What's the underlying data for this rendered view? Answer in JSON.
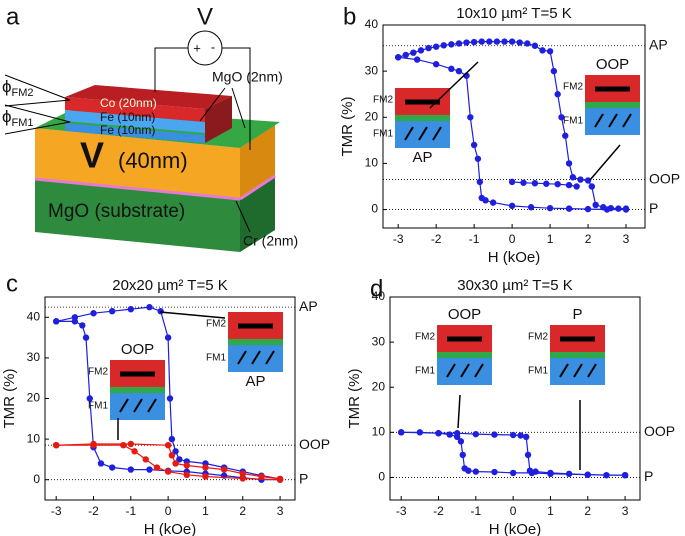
{
  "diagram": {
    "label": "a",
    "voltmeter": {
      "symbol": "V",
      "plus": "+",
      "minus": "-"
    },
    "layers": {
      "co": "Co (20nm)",
      "fe2": "Fe (10nm)",
      "fe1": "Fe (10nm)",
      "v_symbol": "V",
      "v_thickness": "(40nm)",
      "substrate": "MgO (substrate)"
    },
    "callouts": {
      "mgo": "MgO (2nm)",
      "cr": "Cr (2nm)"
    },
    "angles": [
      {
        "symbol": "ϕ",
        "sub": "FM2"
      },
      {
        "symbol": "ϕ",
        "sub": "FM1"
      }
    ]
  },
  "chart_data": [
    {
      "type": "line",
      "label": "b",
      "title": "10x10 µm²  T=5 K",
      "x_label": "H (kOe)",
      "y_label": "TMR (%)",
      "xlim": [
        -3.4,
        3.5
      ],
      "ylim": [
        -4,
        40
      ],
      "xticks": [
        -3,
        -2,
        -1,
        0,
        1,
        2,
        3
      ],
      "yticks": [
        0,
        10,
        20,
        30,
        40
      ],
      "reference_lines": [
        {
          "value": 35.5,
          "label": "AP"
        },
        {
          "value": 6.5,
          "label": "OOP"
        },
        {
          "value": 0,
          "label": "P"
        }
      ],
      "series": [
        {
          "color": "#1f1fe0",
          "x": [
            -3,
            -2.8,
            -2.6,
            -2.4,
            -2.2,
            -2,
            -1.8,
            -1.6,
            -1.4,
            -1.2,
            -1,
            -0.8,
            -0.6,
            -0.4,
            -0.2,
            0,
            0.2,
            0.4,
            0.6,
            0.8,
            1.0,
            1.1,
            1.2,
            1.3,
            1.4,
            1.5,
            1.6,
            1.8,
            2.0,
            2.1,
            2.2,
            2.4,
            2.6,
            2.8,
            3
          ],
          "values": [
            33,
            33.5,
            34,
            34.5,
            35,
            35.3,
            35.6,
            35.8,
            36,
            36.2,
            36.3,
            36.4,
            36.4,
            36.4,
            36.4,
            36.4,
            36.2,
            36,
            35.5,
            34.5,
            34.3,
            30,
            25,
            20,
            16,
            10,
            7,
            6.5,
            6.3,
            5,
            1,
            0.5,
            0.3,
            0.2,
            0.2
          ]
        },
        {
          "color": "#1f1fe0",
          "x": [
            3,
            2.5,
            2,
            1.5,
            1,
            0.5,
            0,
            -0.5,
            -0.7,
            -0.8,
            -0.85,
            -0.9,
            -1,
            -1.1,
            -1.2,
            -1.4,
            -1.6,
            -2,
            -2.5,
            -3
          ],
          "values": [
            0,
            0,
            0.1,
            0.2,
            0.3,
            0.5,
            0.8,
            1.5,
            2,
            2.5,
            6,
            11,
            14,
            20,
            29,
            30,
            30.5,
            31.5,
            32.5,
            33
          ]
        },
        {
          "color": "#1f1fe0",
          "x": [
            0,
            0.3,
            0.6,
            0.9,
            1.2,
            1.5,
            1.7
          ],
          "values": [
            6,
            5.8,
            5.7,
            5.6,
            5.5,
            5.3,
            5
          ]
        }
      ],
      "insets": [
        {
          "state": "AP",
          "fm2": "FM2",
          "fm1": "FM1"
        },
        {
          "state": "OOP",
          "fm2": "FM2",
          "fm1": "FM1"
        }
      ]
    },
    {
      "type": "line",
      "label": "c",
      "title": "20x20 µm²  T=5 K",
      "x_label": "H (kOe)",
      "y_label": "TMR (%)",
      "xlim": [
        -3.3,
        3.4
      ],
      "ylim": [
        -5,
        45
      ],
      "xticks": [
        -3,
        -2,
        -1,
        0,
        1,
        2,
        3
      ],
      "yticks": [
        0,
        10,
        20,
        30,
        40
      ],
      "reference_lines": [
        {
          "value": 42.5,
          "label": "AP"
        },
        {
          "value": 8.5,
          "label": "OOP"
        },
        {
          "value": 0,
          "label": "P"
        }
      ],
      "series": [
        {
          "color": "#1f1fe0",
          "x": [
            -3,
            -2.5,
            -2,
            -1.5,
            -1,
            -0.5,
            -0.2,
            0,
            0.05,
            0.1,
            0.2,
            0.3,
            0.5,
            1,
            1.5,
            2,
            2.5,
            3
          ],
          "values": [
            39,
            40,
            41,
            41.5,
            42,
            42.5,
            41.5,
            35,
            20,
            10,
            7,
            5,
            4.5,
            4,
            3,
            2,
            1,
            0.2
          ]
        },
        {
          "color": "#1f1fe0",
          "x": [
            3,
            2.5,
            2,
            1.5,
            1,
            0.5,
            0,
            -0.5,
            -1,
            -1.5,
            -1.8,
            -2,
            -2.1,
            -2.2,
            -2.3,
            -2.5,
            -3
          ],
          "values": [
            0,
            0,
            0.5,
            1,
            1.5,
            2,
            2.2,
            2.5,
            2.5,
            3,
            4,
            8,
            20,
            35,
            38,
            39,
            39
          ]
        },
        {
          "color": "#e8190f",
          "x": [
            -3,
            -2,
            -1,
            0,
            0.1,
            0.2,
            0.5,
            1,
            1.5,
            2,
            2.5,
            3
          ],
          "values": [
            8.5,
            8.8,
            8.8,
            8.5,
            6,
            4,
            3.5,
            3,
            2.5,
            1.5,
            0.8,
            0.2
          ]
        },
        {
          "color": "#e8190f",
          "x": [
            3,
            2,
            1,
            0.5,
            0,
            -0.3,
            -0.6,
            -0.9,
            -1.2,
            -2,
            -3
          ],
          "values": [
            0,
            0.3,
            0.8,
            1.2,
            2,
            3,
            5,
            7,
            8.5,
            8.5,
            8.5
          ]
        }
      ],
      "insets": [
        {
          "state": "AP",
          "fm2": "FM2",
          "fm1": "FM1"
        },
        {
          "state": "OOP",
          "fm2": "FM2",
          "fm1": "FM1"
        }
      ]
    },
    {
      "type": "line",
      "label": "d",
      "title": "30x30 µm²  T=5 K",
      "x_label": "H (kOe)",
      "y_label": "TMR (%)",
      "xlim": [
        -3.3,
        3.4
      ],
      "ylim": [
        -5,
        40
      ],
      "xticks": [
        -3,
        -2,
        -1,
        0,
        1,
        2,
        3
      ],
      "yticks": [
        0,
        10,
        20,
        30,
        40
      ],
      "reference_lines": [
        {
          "value": 10,
          "label": "OOP"
        },
        {
          "value": 0,
          "label": "P"
        }
      ],
      "series": [
        {
          "color": "#1f1fe0",
          "x": [
            -3,
            -2.5,
            -2,
            -1.5,
            -1,
            -0.5,
            0,
            0.2,
            0.35,
            0.4,
            0.45,
            0.6,
            1,
            1.5,
            2,
            2.5,
            3
          ],
          "values": [
            10,
            10,
            9.8,
            9.8,
            9.6,
            9.5,
            9.4,
            9.3,
            9,
            5,
            1.5,
            1.3,
            1,
            0.8,
            0.6,
            0.5,
            0.5
          ]
        },
        {
          "color": "#1f1fe0",
          "x": [
            3,
            2,
            1,
            0.5,
            0,
            -0.5,
            -1,
            -1.2,
            -1.3,
            -1.35,
            -1.4,
            -1.5,
            -1.7,
            -2,
            -3
          ],
          "values": [
            0.5,
            0.6,
            0.8,
            1,
            1,
            1.2,
            1.3,
            1.5,
            2,
            5,
            8,
            9,
            9.5,
            9.8,
            10
          ]
        }
      ],
      "insets": [
        {
          "state": "OOP",
          "fm2": "FM2",
          "fm1": "FM1"
        },
        {
          "state": "P",
          "fm2": "FM2",
          "fm1": "FM1"
        }
      ]
    }
  ]
}
